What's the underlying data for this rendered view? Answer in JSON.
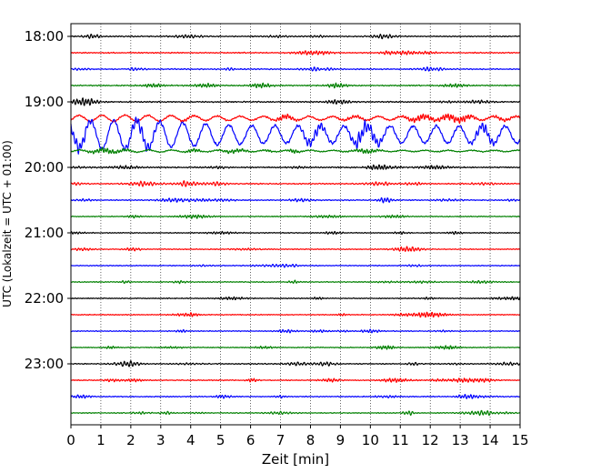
{
  "chart_data": {
    "type": "line",
    "title": "",
    "xlabel": "Zeit  [min]",
    "ylabel": "UTC (Lokalzeit = UTC + 01:00)",
    "xlim": [
      0,
      15
    ],
    "x_ticks": [
      "0",
      "1",
      "2",
      "3",
      "4",
      "5",
      "6",
      "7",
      "8",
      "9",
      "10",
      "11",
      "12",
      "13",
      "14",
      "15"
    ],
    "y_ticks": [
      {
        "label": "18:00",
        "trace": 0
      },
      {
        "label": "19:00",
        "trace": 4
      },
      {
        "label": "20:00",
        "trace": 8
      },
      {
        "label": "21:00",
        "trace": 12
      },
      {
        "label": "22:00",
        "trace": 16
      },
      {
        "label": "23:00",
        "trace": 20
      }
    ],
    "grid": "x-dotted",
    "trace_colors": [
      "#000000",
      "#ff0000",
      "#0000ff",
      "#008000"
    ],
    "trace_interval_minutes": 15,
    "traces": [
      {
        "start": "18:00",
        "amplitude": 0.9
      },
      {
        "start": "18:15",
        "amplitude": 0.9
      },
      {
        "start": "18:30",
        "amplitude": 0.9
      },
      {
        "start": "18:45",
        "amplitude": 0.9
      },
      {
        "start": "19:00",
        "amplitude": 1.0
      },
      {
        "start": "19:15",
        "amplitude": 2.2
      },
      {
        "start": "19:30",
        "amplitude": 4.0
      },
      {
        "start": "19:45",
        "amplitude": 1.6
      },
      {
        "start": "20:00",
        "amplitude": 1.0
      },
      {
        "start": "20:15",
        "amplitude": 0.9
      },
      {
        "start": "20:30",
        "amplitude": 0.8
      },
      {
        "start": "20:45",
        "amplitude": 0.7
      },
      {
        "start": "21:00",
        "amplitude": 0.7
      },
      {
        "start": "21:15",
        "amplitude": 0.7
      },
      {
        "start": "21:30",
        "amplitude": 0.7
      },
      {
        "start": "21:45",
        "amplitude": 0.7
      },
      {
        "start": "22:00",
        "amplitude": 0.7
      },
      {
        "start": "22:15",
        "amplitude": 0.7
      },
      {
        "start": "22:30",
        "amplitude": 0.7
      },
      {
        "start": "22:45",
        "amplitude": 0.7
      },
      {
        "start": "23:00",
        "amplitude": 0.8
      },
      {
        "start": "23:15",
        "amplitude": 0.8
      },
      {
        "start": "23:30",
        "amplitude": 0.8
      },
      {
        "start": "23:45",
        "amplitude": 0.7
      }
    ]
  }
}
